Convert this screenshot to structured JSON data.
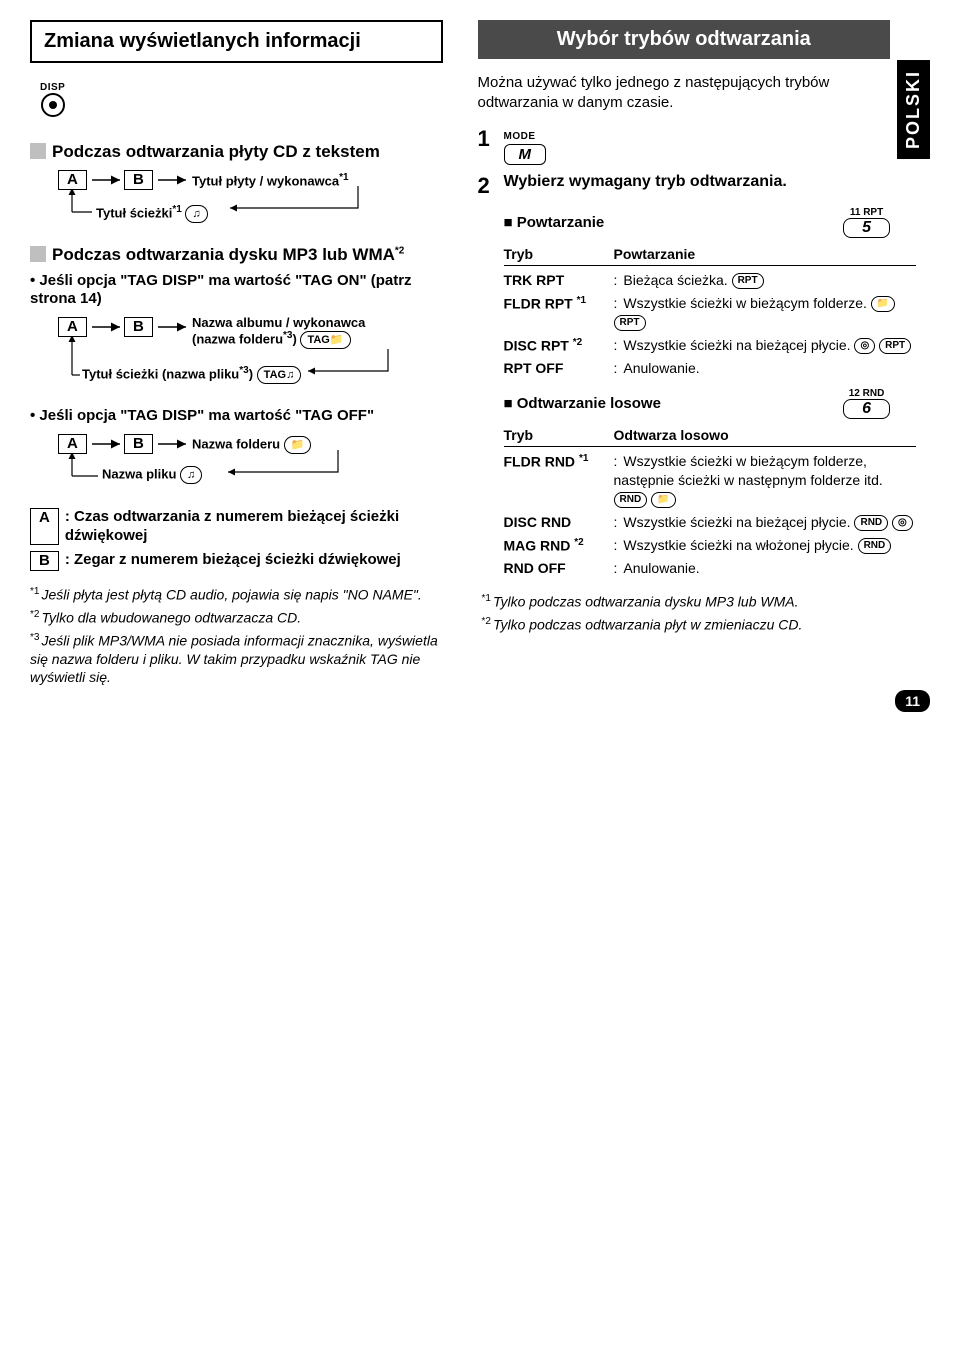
{
  "language_tab": "POLSKI",
  "page_number": "11",
  "left": {
    "title": "Zmiana wyświetlanych informacji",
    "disp_label": "DISP",
    "section1": {
      "heading": "Podczas odtwarzania płyty CD z tekstem",
      "flow_right": "Tytuł płyty / wykonawca",
      "flow_right_sup": "*1",
      "flow_bottom": "Tytuł ścieżki",
      "flow_bottom_sup": "*1"
    },
    "section2": {
      "heading_prefix": "Podczas odtwarzania dysku MP3 lub WMA",
      "heading_sup": "*2",
      "tag_on_line": "Jeśli opcja \"TAG DISP\" ma wartość \"TAG ON\" (patrz strona 14)",
      "flow_right_a": "Nazwa albumu / wykonawca",
      "flow_right_b": "(nazwa folderu",
      "flow_right_b_sup": "*3",
      "flow_right_b_suffix": ")",
      "flow_bottom": "Tytuł ścieżki (nazwa pliku",
      "flow_bottom_sup": "*3",
      "flow_bottom_suffix": ")",
      "tag_off_line": "Jeśli opcja \"TAG DISP\" ma wartość \"TAG OFF\"",
      "off_flow_right": "Nazwa folderu",
      "off_flow_bottom": "Nazwa pliku"
    },
    "defs": {
      "a": ": Czas odtwarzania z numerem bieżącej ścieżki dźwiękowej",
      "b": ": Zegar z numerem bieżącej ścieżki dźwiękowej"
    },
    "footnotes": {
      "f1": "Jeśli płyta jest płytą CD audio, pojawia się napis \"NO NAME\".",
      "f2": "Tylko dla wbudowanego odtwarzacza CD.",
      "f3": "Jeśli plik MP3/WMA nie posiada informacji znacznika, wyświetla się nazwa folderu i pliku. W takim przypadku wskaźnik TAG nie wyświetli się."
    }
  },
  "right": {
    "title": "Wybór trybów odtwarzania",
    "intro": "Można używać tylko jednego z następujących trybów odtwarzania w danym czasie.",
    "step1_label": "MODE",
    "step1_key": "M",
    "step2": "Wybierz wymagany tryb odtwarzania.",
    "repeat": {
      "heading": "Powtarzanie",
      "preset_label": "11  RPT",
      "preset_key": "5",
      "table_headers": [
        "Tryb",
        "Powtarzanie"
      ],
      "rows": [
        {
          "mode": "TRK RPT",
          "sup": "",
          "desc": "Bieżąca ścieżka.",
          "badges": [
            "RPT"
          ]
        },
        {
          "mode": "FLDR RPT",
          "sup": "*1",
          "desc": "Wszystkie ścieżki w bieżącym folderze.",
          "badges": [
            "folder",
            "RPT"
          ]
        },
        {
          "mode": "DISC RPT",
          "sup": "*2",
          "desc": "Wszystkie ścieżki na bieżącej płycie.",
          "badges": [
            "disc",
            "RPT"
          ]
        },
        {
          "mode": "RPT OFF",
          "sup": "",
          "desc": "Anulowanie.",
          "badges": []
        }
      ]
    },
    "random": {
      "heading": "Odtwarzanie losowe",
      "preset_label": "12  RND",
      "preset_key": "6",
      "table_headers": [
        "Tryb",
        "Odtwarza losowo"
      ],
      "rows": [
        {
          "mode": "FLDR RND",
          "sup": "*1",
          "desc": "Wszystkie ścieżki w bieżącym folderze, następnie ścieżki w następnym folderze itd.",
          "badges": [
            "RND",
            "folder"
          ]
        },
        {
          "mode": "DISC RND",
          "sup": "",
          "desc": "Wszystkie ścieżki na bieżącej płycie.",
          "badges": [
            "RND",
            "disc"
          ]
        },
        {
          "mode": "MAG RND",
          "sup": "*2",
          "desc": "Wszystkie ścieżki na włożonej płycie.",
          "badges": [
            "RND"
          ]
        },
        {
          "mode": "RND OFF",
          "sup": "",
          "desc": "Anulowanie.",
          "badges": []
        }
      ]
    },
    "footnotes": {
      "f1": "Tylko podczas odtwarzania dysku MP3 lub WMA.",
      "f2": "Tylko podczas odtwarzania płyt w zmieniaczu CD."
    }
  },
  "letters": {
    "A": "A",
    "B": "B"
  },
  "icons": {
    "tag": "TAG",
    "note": "♫"
  },
  "colors": {
    "text": "#000000",
    "bg": "#ffffff",
    "gray": "#bfbfbf",
    "titlebar": "#4a4a4a"
  }
}
